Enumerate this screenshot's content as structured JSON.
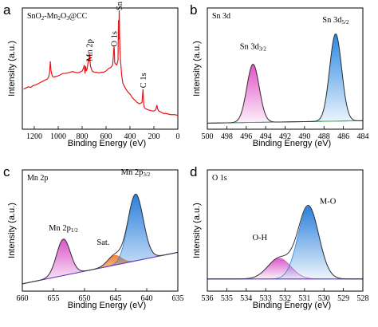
{
  "chart_data": [
    {
      "panel": "a",
      "type": "line",
      "legend": "SnO2-Mn2O3@CC",
      "legend_parts": [
        {
          "t": "SnO"
        },
        {
          "t": "2",
          "sub": true
        },
        {
          "t": "-Mn"
        },
        {
          "t": "2",
          "sub": true
        },
        {
          "t": "O"
        },
        {
          "t": "3",
          "sub": true
        },
        {
          "t": "@CC"
        }
      ],
      "xlabel": "Binding Energy (eV)",
      "ylabel": "Intensity (a.u.)",
      "xlim": [
        1300,
        0
      ],
      "ylim": [
        0,
        100
      ],
      "xticks": [
        1200,
        1000,
        800,
        600,
        400,
        200,
        0
      ],
      "color": "#e8141b",
      "series": [
        {
          "values_x": [
            1290,
            1270,
            1250,
            1230,
            1210,
            1190,
            1170,
            1150,
            1130,
            1110,
            1090,
            1080,
            1072,
            1066,
            1060,
            1050,
            1040,
            1020,
            1000,
            980,
            960,
            940,
            920,
            900,
            880,
            860,
            840,
            820,
            800,
            790,
            782,
            776,
            770,
            765,
            758,
            752,
            746,
            742,
            738,
            734,
            730,
            724,
            716,
            700,
            680,
            660,
            640,
            620,
            600,
            580,
            560,
            545,
            538,
            534,
            531,
            528,
            522,
            510,
            500,
            496,
            493,
            490,
            487,
            484,
            480,
            470,
            460,
            440,
            420,
            400,
            380,
            360,
            340,
            320,
            300,
            295,
            291,
            288,
            285,
            280,
            270,
            250,
            230,
            210,
            200,
            185,
            175,
            170,
            160,
            140,
            120,
            100,
            80,
            60,
            40,
            25,
            5
          ],
          "values_y": [
            33,
            34,
            35,
            34.5,
            36,
            36.5,
            37.5,
            38.5,
            39.5,
            40.5,
            41.5,
            43,
            47,
            56,
            48,
            44,
            43,
            43.5,
            44,
            45,
            46,
            46,
            46.5,
            47,
            47.5,
            47,
            46.5,
            47,
            48,
            50,
            53,
            46,
            52,
            48,
            50,
            54,
            58,
            56,
            62,
            56,
            52,
            50,
            48,
            47,
            47,
            46.5,
            47,
            47,
            48,
            50,
            51,
            53,
            62,
            68,
            66,
            55,
            54,
            53,
            57,
            90,
            74,
            98,
            78,
            66,
            58,
            45,
            38,
            34,
            31,
            29,
            26,
            24,
            22,
            21,
            22,
            28,
            33,
            26,
            20,
            18,
            17,
            16,
            15.5,
            15,
            15,
            16,
            20,
            17,
            15,
            14,
            13,
            13,
            12.5,
            12,
            12,
            12,
            11.5
          ]
        }
      ],
      "annotations": [
        {
          "text": "Mn 2p",
          "x": 735,
          "y": 56
        },
        {
          "text": "O 1s",
          "x": 530,
          "y": 68
        },
        {
          "text": "Sn 3d",
          "x": 488,
          "y": 98
        },
        {
          "text": "C 1s",
          "x": 285,
          "y": 34
        }
      ]
    },
    {
      "panel": "b",
      "type": "line",
      "legend": "Sn 3d",
      "xlabel": "Binding Energy (eV)",
      "ylabel": "Intensity (a.u.)",
      "xlim": [
        500,
        484
      ],
      "ylim": [
        0,
        100
      ],
      "xticks": [
        500,
        498,
        496,
        494,
        492,
        490,
        488,
        486,
        484
      ],
      "baseline": {
        "x": [
          500,
          484
        ],
        "y": [
          5,
          7
        ]
      },
      "peaks": [
        {
          "name": "Sn 3d3/2",
          "center": 495.3,
          "height": 48,
          "fwhm": 1.5,
          "color": "#e152c7"
        },
        {
          "name": "Sn 3d5/2",
          "center": 486.8,
          "height": 72,
          "fwhm": 1.45,
          "color": "#2a87e2"
        }
      ],
      "annotations": [
        {
          "text": "Sn 3d3/2",
          "parts": [
            {
              "t": "Sn 3d"
            },
            {
              "t": "3/2",
              "sub": true
            }
          ],
          "x": 495.3,
          "y": 66
        },
        {
          "text": "Sn 3d5/2",
          "parts": [
            {
              "t": "Sn 3d"
            },
            {
              "t": "5/2",
              "sub": true
            }
          ],
          "x": 486.8,
          "y": 88
        }
      ]
    },
    {
      "panel": "c",
      "type": "line",
      "legend": "Mn 2p",
      "xlabel": "Binding Energy (eV)",
      "ylabel": "Intensity (a.u.)",
      "xlim": [
        660,
        635
      ],
      "ylim": [
        0,
        100
      ],
      "xticks": [
        660,
        655,
        650,
        645,
        640,
        635
      ],
      "baseline": {
        "x": [
          660,
          635
        ],
        "y": [
          6,
          32
        ]
      },
      "peaks": [
        {
          "name": "Mn 2p1/2",
          "center": 653.4,
          "height": 30,
          "fwhm": 2.6,
          "color": "#d955c8"
        },
        {
          "name": "Sat.",
          "center": 645.2,
          "height": 8,
          "fwhm": 2.6,
          "color": "#f07a2e"
        },
        {
          "name": "Mn 2p3/2",
          "center": 641.8,
          "height": 55,
          "fwhm": 2.9,
          "color": "#2a7fdc"
        }
      ],
      "annotations": [
        {
          "text": "Mn 2p1/2",
          "parts": [
            {
              "t": "Mn 2p"
            },
            {
              "t": "1/2",
              "sub": true
            }
          ],
          "x": 653.4,
          "y": 50
        },
        {
          "text": "Sat.",
          "parts": [
            {
              "t": "Sat."
            }
          ],
          "x": 647.0,
          "y": 38
        },
        {
          "text": "Mn 2p3/2",
          "parts": [
            {
              "t": "Mn 2p"
            },
            {
              "t": "3/2",
              "sub": true
            }
          ],
          "x": 641.8,
          "y": 96
        }
      ]
    },
    {
      "panel": "d",
      "type": "line",
      "legend": "O 1s",
      "xlabel": "Binding Energy (eV)",
      "ylabel": "Intensity (a.u.)",
      "xlim": [
        536,
        528
      ],
      "ylim": [
        0,
        100
      ],
      "xticks": [
        536,
        535,
        534,
        533,
        532,
        531,
        530,
        529,
        528
      ],
      "baseline": {
        "x": [
          536,
          528
        ],
        "y": [
          10,
          10
        ]
      },
      "peaks": [
        {
          "name": "O-H",
          "center": 532.3,
          "height": 17,
          "fwhm": 1.4,
          "color": "#d85cc9"
        },
        {
          "name": "M-O",
          "center": 530.8,
          "height": 60,
          "fwhm": 1.25,
          "color": "#2b80dc"
        }
      ],
      "annotations": [
        {
          "text": "O-H",
          "parts": [
            {
              "t": "O-H"
            }
          ],
          "x": 533.3,
          "y": 42
        },
        {
          "text": "M-O",
          "parts": [
            {
              "t": "M-O"
            }
          ],
          "x": 529.8,
          "y": 72
        }
      ]
    }
  ]
}
